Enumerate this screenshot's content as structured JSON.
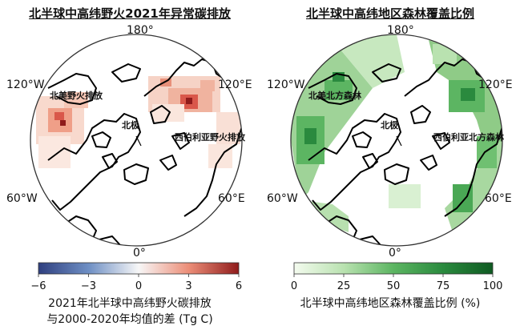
{
  "left_panel": {
    "title": "北半球中高纬野火2021年异常碳排放",
    "lon_labels": {
      "top": "180°",
      "bottom": "0°",
      "upper_left": "120°W",
      "upper_right": "120°E",
      "lower_left": "60°W",
      "lower_right": "60°E"
    },
    "regions": {
      "north_america": "北美野火排放",
      "pole": "北极",
      "siberia": "西伯利亚野火排放"
    },
    "colorbar": {
      "ticks": [
        "−6",
        "−3",
        "0",
        "3",
        "6"
      ],
      "range": [
        -6,
        6
      ],
      "colors": [
        "#2f3f7f",
        "#6e8fc4",
        "#f7f7f7",
        "#ec8e78",
        "#8f1b1b"
      ],
      "title_line1": "2021年北半球中高纬野火碳排放",
      "title_line2": "与2000-2020年均值的差 (Tg C)"
    }
  },
  "right_panel": {
    "title": "北半球中高纬地区森林覆盖比例",
    "lon_labels": {
      "top": "180°",
      "bottom": "0°",
      "upper_left": "120°W",
      "upper_right": "120°E",
      "lower_left": "60°W",
      "lower_right": "60°E"
    },
    "regions": {
      "north_america": "北美北方森林",
      "pole": "北极",
      "siberia": "西伯利亚北方森林"
    },
    "colorbar": {
      "ticks": [
        "0",
        "25",
        "50",
        "75",
        "100"
      ],
      "range": [
        0,
        100
      ],
      "colors": [
        "#f4fbef",
        "#b9e2b0",
        "#5cb562",
        "#2a8a3e",
        "#0f5a22"
      ],
      "title_line1": "北半球中高纬地区森林覆盖比例 (%)"
    }
  }
}
